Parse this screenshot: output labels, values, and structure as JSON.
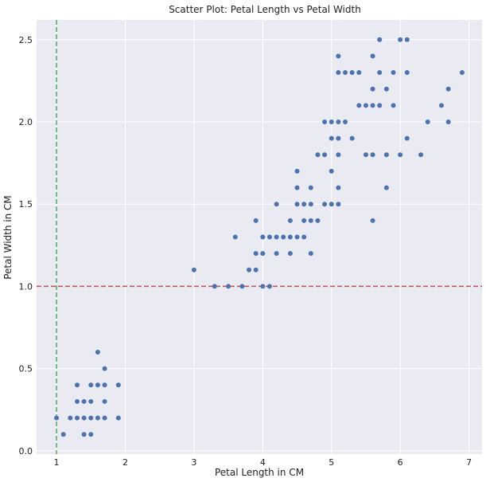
{
  "chart_data": {
    "type": "scatter",
    "title": "Scatter Plot: Petal Length vs Petal Width",
    "xlabel": "Petal Length in CM",
    "ylabel": "Petal Width in CM",
    "xlim": [
      0.71,
      7.19
    ],
    "ylim": [
      -0.02,
      2.62
    ],
    "xticks": [
      1,
      2,
      3,
      4,
      5,
      6,
      7
    ],
    "yticks": [
      0.0,
      0.5,
      1.0,
      1.5,
      2.0,
      2.5
    ],
    "xtick_labels": [
      "1",
      "2",
      "3",
      "4",
      "5",
      "6",
      "7"
    ],
    "ytick_labels": [
      "0.0",
      "0.5",
      "1.0",
      "1.5",
      "2.0",
      "2.5"
    ],
    "grid": true,
    "point_color": "#4c72b0",
    "reference_lines": [
      {
        "orientation": "horizontal",
        "value": 1.0,
        "color": "#c44e52",
        "style": "dashed"
      },
      {
        "orientation": "vertical",
        "value": 1.0,
        "color": "#55a868",
        "style": "dashed"
      }
    ],
    "points": [
      [
        1.0,
        0.2
      ],
      [
        1.1,
        0.1
      ],
      [
        1.2,
        0.2
      ],
      [
        1.3,
        0.2
      ],
      [
        1.3,
        0.3
      ],
      [
        1.3,
        0.4
      ],
      [
        1.4,
        0.1
      ],
      [
        1.4,
        0.2
      ],
      [
        1.4,
        0.3
      ],
      [
        1.5,
        0.1
      ],
      [
        1.5,
        0.2
      ],
      [
        1.5,
        0.3
      ],
      [
        1.5,
        0.4
      ],
      [
        1.6,
        0.2
      ],
      [
        1.6,
        0.4
      ],
      [
        1.6,
        0.6
      ],
      [
        1.7,
        0.2
      ],
      [
        1.7,
        0.3
      ],
      [
        1.7,
        0.4
      ],
      [
        1.7,
        0.5
      ],
      [
        1.9,
        0.2
      ],
      [
        1.9,
        0.4
      ],
      [
        3.0,
        1.1
      ],
      [
        3.3,
        1.0
      ],
      [
        3.5,
        1.0
      ],
      [
        3.6,
        1.3
      ],
      [
        3.7,
        1.0
      ],
      [
        3.8,
        1.1
      ],
      [
        3.9,
        1.1
      ],
      [
        3.9,
        1.2
      ],
      [
        3.9,
        1.4
      ],
      [
        4.0,
        1.0
      ],
      [
        4.0,
        1.2
      ],
      [
        4.0,
        1.3
      ],
      [
        4.1,
        1.0
      ],
      [
        4.1,
        1.3
      ],
      [
        4.2,
        1.2
      ],
      [
        4.2,
        1.3
      ],
      [
        4.2,
        1.5
      ],
      [
        4.3,
        1.3
      ],
      [
        4.4,
        1.2
      ],
      [
        4.4,
        1.3
      ],
      [
        4.4,
        1.4
      ],
      [
        4.5,
        1.3
      ],
      [
        4.5,
        1.5
      ],
      [
        4.5,
        1.6
      ],
      [
        4.5,
        1.7
      ],
      [
        4.6,
        1.3
      ],
      [
        4.6,
        1.4
      ],
      [
        4.6,
        1.5
      ],
      [
        4.7,
        1.2
      ],
      [
        4.7,
        1.4
      ],
      [
        4.7,
        1.5
      ],
      [
        4.7,
        1.6
      ],
      [
        4.8,
        1.4
      ],
      [
        4.8,
        1.8
      ],
      [
        4.9,
        1.5
      ],
      [
        4.9,
        1.8
      ],
      [
        4.9,
        2.0
      ],
      [
        5.0,
        1.5
      ],
      [
        5.0,
        1.7
      ],
      [
        5.0,
        1.9
      ],
      [
        5.0,
        2.0
      ],
      [
        5.1,
        1.5
      ],
      [
        5.1,
        1.6
      ],
      [
        5.1,
        1.8
      ],
      [
        5.1,
        1.9
      ],
      [
        5.1,
        2.0
      ],
      [
        5.1,
        2.3
      ],
      [
        5.1,
        2.4
      ],
      [
        5.2,
        2.0
      ],
      [
        5.2,
        2.3
      ],
      [
        5.3,
        1.9
      ],
      [
        5.3,
        2.3
      ],
      [
        5.4,
        2.1
      ],
      [
        5.4,
        2.3
      ],
      [
        5.5,
        1.8
      ],
      [
        5.5,
        2.1
      ],
      [
        5.6,
        1.4
      ],
      [
        5.6,
        1.8
      ],
      [
        5.6,
        2.1
      ],
      [
        5.6,
        2.2
      ],
      [
        5.6,
        2.4
      ],
      [
        5.7,
        2.1
      ],
      [
        5.7,
        2.3
      ],
      [
        5.7,
        2.5
      ],
      [
        5.8,
        1.6
      ],
      [
        5.8,
        1.8
      ],
      [
        5.8,
        2.2
      ],
      [
        5.9,
        2.1
      ],
      [
        5.9,
        2.3
      ],
      [
        6.0,
        1.8
      ],
      [
        6.0,
        2.5
      ],
      [
        6.1,
        1.9
      ],
      [
        6.1,
        2.3
      ],
      [
        6.1,
        2.5
      ],
      [
        6.3,
        1.8
      ],
      [
        6.4,
        2.0
      ],
      [
        6.6,
        2.1
      ],
      [
        6.7,
        2.0
      ],
      [
        6.7,
        2.2
      ],
      [
        6.9,
        2.3
      ]
    ]
  }
}
